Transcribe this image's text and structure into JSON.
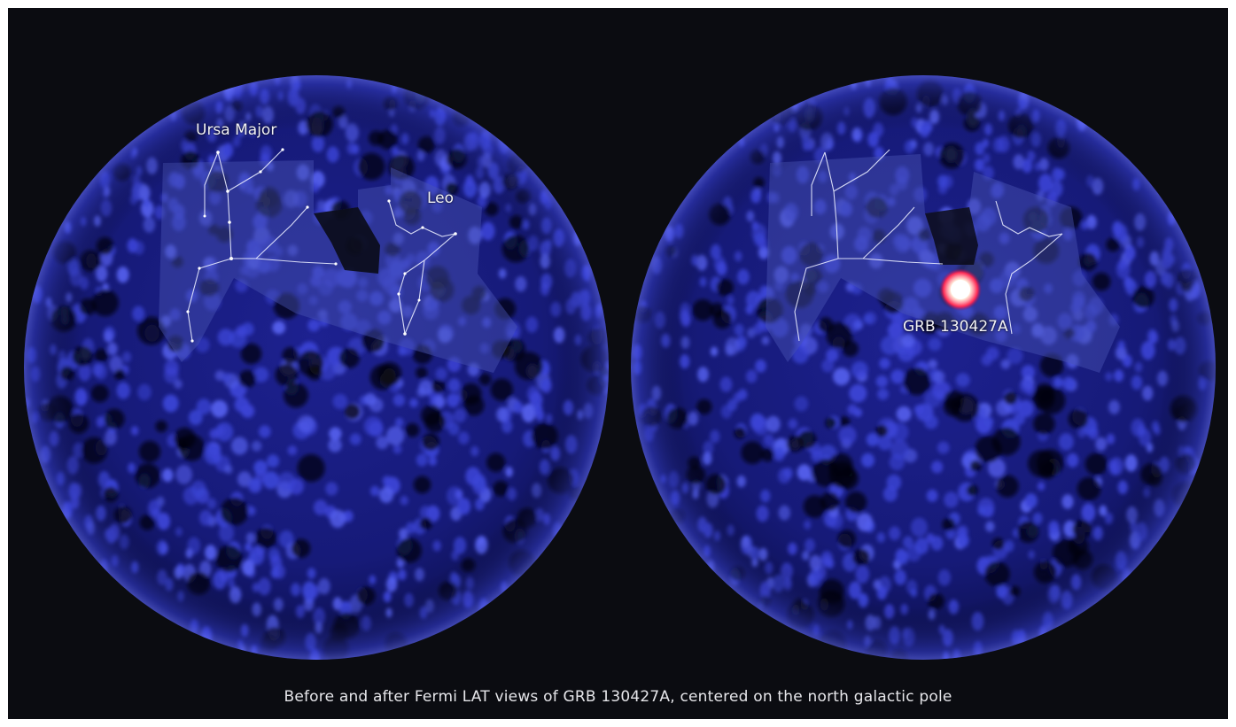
{
  "figure": {
    "caption": "Before and after Fermi LAT views of GRB 130427A, centered on the north galactic pole"
  },
  "left_panel": {
    "labels": {
      "ursa_major": "Ursa Major",
      "leo": "Leo"
    }
  },
  "right_panel": {
    "labels": {
      "burst": "GRB 130427A"
    }
  },
  "colors": {
    "background": "#0b0c11",
    "sky": "#1c1f8a",
    "photon_blob": "#3b44d6",
    "constellation_region": "#4a55b4",
    "constellation_lines": "#e9ecff",
    "burst_core": "#ffffff",
    "burst_halo": "#ff2a55"
  }
}
